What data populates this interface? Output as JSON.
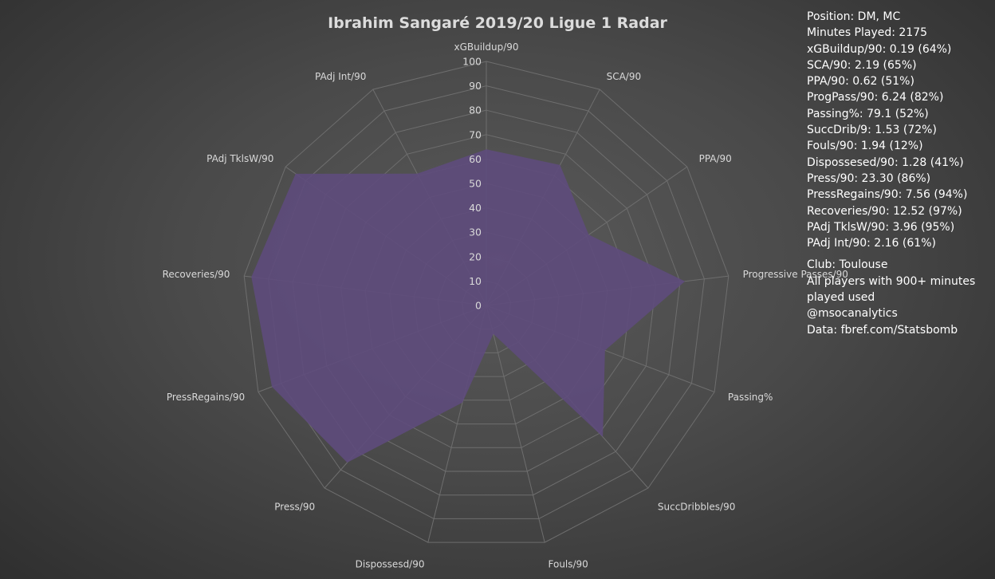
{
  "chart_data": {
    "type": "radar",
    "title": "Ibrahim Sangaré 2019/20 Ligue 1 Radar",
    "axes": [
      "xGBuildup/90",
      "SCA/90",
      "PPA/90",
      "Progressive Passes/90",
      "Passing%",
      "SuccDribbles/90",
      "Fouls/90",
      "Dispossesd/90",
      "Press/90",
      "PressRegains/90",
      "Recoveries/90",
      "PAdj TklsW/90",
      "PAdj Int/90"
    ],
    "series": [
      {
        "values": [
          64,
          65,
          51,
          82,
          52,
          72,
          12,
          41,
          86,
          94,
          97,
          95,
          61
        ]
      }
    ],
    "rlim": [
      0,
      100
    ],
    "r_ticks": [
      "0",
      "10",
      "20",
      "30",
      "40",
      "50",
      "60",
      "70",
      "80",
      "90",
      "100"
    ],
    "series_color": "#5e4b7c",
    "grid": true
  },
  "info": {
    "stats": [
      "Position: DM, MC",
      "Minutes Played: 2175",
      "xGBuildup/90: 0.19 (64%)",
      "SCA/90: 2.19 (65%)",
      "PPA/90: 0.62 (51%)",
      "ProgPass/90: 6.24 (82%)",
      "Passing%: 79.1 (52%)",
      "SuccDrib/9: 1.53 (72%)",
      "Fouls/90: 1.94 (12%)",
      "Dispossesed/90: 1.28 (41%)",
      "Press/90: 23.30 (86%)",
      "PressRegains/90: 7.56 (94%)",
      "Recoveries/90: 12.52 (97%)",
      "PAdj TklsW/90: 3.96 (95%)",
      "PAdj Int/90: 2.16 (61%)"
    ],
    "club": "Club: Toulouse",
    "note": "All players with 900+ minutes played used",
    "handle": "@msocanalytics",
    "source": "Data: fbref.com/Statsbomb"
  }
}
